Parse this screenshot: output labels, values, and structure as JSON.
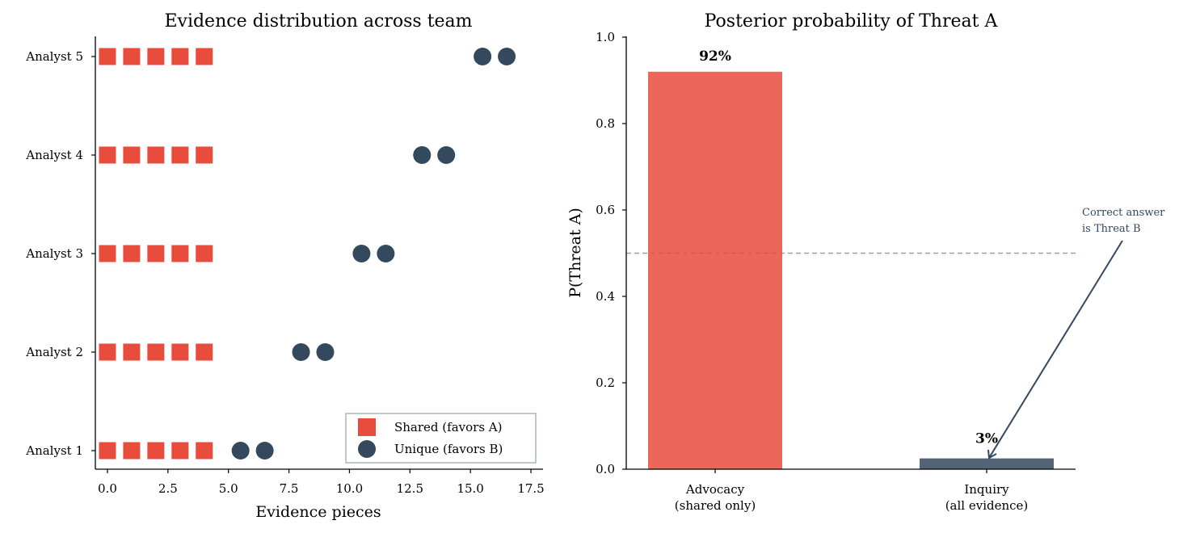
{
  "chart_data": [
    {
      "type": "scatter",
      "title": "Evidence distribution across team",
      "xlabel": "Evidence pieces",
      "ylabel": "",
      "xlim": [
        -0.5,
        18.0
      ],
      "xticks": [
        "0.0",
        "2.5",
        "5.0",
        "7.5",
        "10.0",
        "12.5",
        "15.0",
        "17.5"
      ],
      "xtick_values": [
        0,
        2.5,
        5,
        7.5,
        10,
        12.5,
        15,
        17.5
      ],
      "categories": [
        "Analyst 1",
        "Analyst 2",
        "Analyst 3",
        "Analyst 4",
        "Analyst 5"
      ],
      "series": [
        {
          "name": "Shared (favors A)",
          "marker": "square",
          "color": "#e74c3c",
          "points": [
            {
              "x": 0,
              "y": "Analyst 1"
            },
            {
              "x": 1,
              "y": "Analyst 1"
            },
            {
              "x": 2,
              "y": "Analyst 1"
            },
            {
              "x": 3,
              "y": "Analyst 1"
            },
            {
              "x": 4,
              "y": "Analyst 1"
            },
            {
              "x": 0,
              "y": "Analyst 2"
            },
            {
              "x": 1,
              "y": "Analyst 2"
            },
            {
              "x": 2,
              "y": "Analyst 2"
            },
            {
              "x": 3,
              "y": "Analyst 2"
            },
            {
              "x": 4,
              "y": "Analyst 2"
            },
            {
              "x": 0,
              "y": "Analyst 3"
            },
            {
              "x": 1,
              "y": "Analyst 3"
            },
            {
              "x": 2,
              "y": "Analyst 3"
            },
            {
              "x": 3,
              "y": "Analyst 3"
            },
            {
              "x": 4,
              "y": "Analyst 3"
            },
            {
              "x": 0,
              "y": "Analyst 4"
            },
            {
              "x": 1,
              "y": "Analyst 4"
            },
            {
              "x": 2,
              "y": "Analyst 4"
            },
            {
              "x": 3,
              "y": "Analyst 4"
            },
            {
              "x": 4,
              "y": "Analyst 4"
            },
            {
              "x": 0,
              "y": "Analyst 5"
            },
            {
              "x": 1,
              "y": "Analyst 5"
            },
            {
              "x": 2,
              "y": "Analyst 5"
            },
            {
              "x": 3,
              "y": "Analyst 5"
            },
            {
              "x": 4,
              "y": "Analyst 5"
            }
          ]
        },
        {
          "name": "Unique (favors B)",
          "marker": "circle",
          "color": "#34495e",
          "points": [
            {
              "x": 5.5,
              "y": "Analyst 1"
            },
            {
              "x": 6.5,
              "y": "Analyst 1"
            },
            {
              "x": 8.0,
              "y": "Analyst 2"
            },
            {
              "x": 9.0,
              "y": "Analyst 2"
            },
            {
              "x": 10.5,
              "y": "Analyst 3"
            },
            {
              "x": 11.5,
              "y": "Analyst 3"
            },
            {
              "x": 13.0,
              "y": "Analyst 4"
            },
            {
              "x": 14.0,
              "y": "Analyst 4"
            },
            {
              "x": 15.5,
              "y": "Analyst 5"
            },
            {
              "x": 16.5,
              "y": "Analyst 5"
            }
          ]
        }
      ],
      "legend": {
        "position": "lower-right",
        "labels": [
          "Shared (favors A)",
          "Unique (favors B)"
        ]
      },
      "grid": false
    },
    {
      "type": "bar",
      "title": "Posterior probability of Threat A",
      "xlabel": "",
      "ylabel": "P(Threat A)",
      "ylim": [
        0.0,
        1.0
      ],
      "yticks": [
        "0.0",
        "0.2",
        "0.4",
        "0.6",
        "0.8",
        "1.0"
      ],
      "ytick_values": [
        0,
        0.2,
        0.4,
        0.6,
        0.8,
        1.0
      ],
      "categories": [
        [
          "Advocacy",
          "(shared only)"
        ],
        [
          "Inquiry",
          "(all evidence)"
        ]
      ],
      "values": [
        0.92,
        0.025
      ],
      "colors": [
        "#e74c3c",
        "#34495e"
      ],
      "data_labels": [
        "92%",
        "3%"
      ],
      "reference_line": {
        "y": 0.5,
        "style": "dashed",
        "color": "#95a5a6"
      },
      "annotation": {
        "text": [
          "Correct answer",
          "is Threat B"
        ],
        "points_to": {
          "category_index": 1,
          "y": 0.03
        }
      },
      "grid": false
    }
  ]
}
